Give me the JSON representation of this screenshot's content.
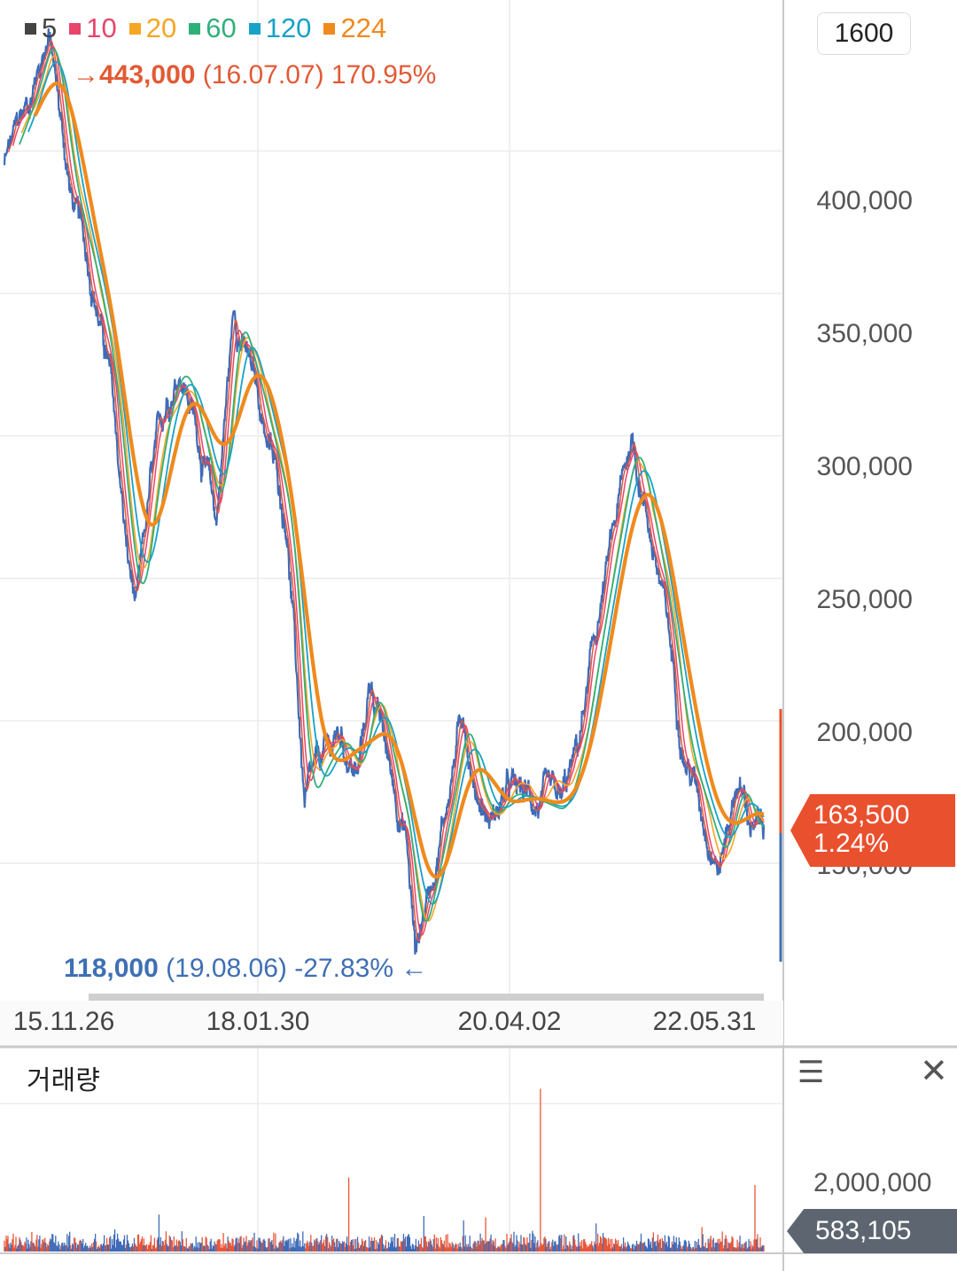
{
  "legend": [
    {
      "label": "5",
      "color": "#444444"
    },
    {
      "label": "10",
      "color": "#e8456b"
    },
    {
      "label": "20",
      "color": "#f5a623"
    },
    {
      "label": "60",
      "color": "#2fb07a"
    },
    {
      "label": "120",
      "color": "#17a2c8"
    },
    {
      "label": "224",
      "color": "#f08a1c"
    }
  ],
  "period": "1600",
  "high": {
    "arrow": "→",
    "price": "443,000",
    "date": "(16.07.07)",
    "pct": "170.95%"
  },
  "low": {
    "price": "118,000",
    "date": "(19.08.06)",
    "pct": "-27.83%",
    "arrow": "←"
  },
  "current": {
    "price": "163,500",
    "change": "1.24%"
  },
  "volume": {
    "title": "거래량",
    "axis_label": "2,000,000",
    "current": "583,105"
  },
  "icons": {
    "menu": "menu-icon",
    "close": "close-icon"
  },
  "chart_data": {
    "type": "line",
    "x_tick_labels": [
      "15.11.26",
      "18.01.30",
      "20.04.02",
      "22.05.31"
    ],
    "y_tick_labels": [
      "400,000",
      "350,000",
      "300,000",
      "250,000",
      "200,000",
      "150,000"
    ],
    "ylim": [
      103000,
      453000
    ],
    "price_keypoints": [
      {
        "i": 0,
        "v": 395000
      },
      {
        "i": 60,
        "v": 420000
      },
      {
        "i": 100,
        "v": 443000
      },
      {
        "i": 150,
        "v": 385000
      },
      {
        "i": 200,
        "v": 355000
      },
      {
        "i": 240,
        "v": 320000
      },
      {
        "i": 280,
        "v": 255000
      },
      {
        "i": 300,
        "v": 238000
      },
      {
        "i": 330,
        "v": 280000
      },
      {
        "i": 370,
        "v": 315000
      },
      {
        "i": 400,
        "v": 325000
      },
      {
        "i": 440,
        "v": 300000
      },
      {
        "i": 480,
        "v": 270000
      },
      {
        "i": 520,
        "v": 345000
      },
      {
        "i": 580,
        "v": 310000
      },
      {
        "i": 640,
        "v": 270000
      },
      {
        "i": 680,
        "v": 170000
      },
      {
        "i": 720,
        "v": 185000
      },
      {
        "i": 760,
        "v": 195000
      },
      {
        "i": 800,
        "v": 180000
      },
      {
        "i": 830,
        "v": 215000
      },
      {
        "i": 870,
        "v": 185000
      },
      {
        "i": 910,
        "v": 160000
      },
      {
        "i": 930,
        "v": 120000
      },
      {
        "i": 960,
        "v": 140000
      },
      {
        "i": 1000,
        "v": 170000
      },
      {
        "i": 1040,
        "v": 205000
      },
      {
        "i": 1060,
        "v": 180000
      },
      {
        "i": 1100,
        "v": 165000
      },
      {
        "i": 1140,
        "v": 175000
      },
      {
        "i": 1200,
        "v": 172000
      },
      {
        "i": 1260,
        "v": 168000
      },
      {
        "i": 1300,
        "v": 190000
      },
      {
        "i": 1340,
        "v": 230000
      },
      {
        "i": 1380,
        "v": 265000
      },
      {
        "i": 1420,
        "v": 300000
      },
      {
        "i": 1460,
        "v": 270000
      },
      {
        "i": 1500,
        "v": 235000
      },
      {
        "i": 1540,
        "v": 190000
      },
      {
        "i": 1580,
        "v": 170000
      },
      {
        "i": 1620,
        "v": 150000
      },
      {
        "i": 1660,
        "v": 180000
      },
      {
        "i": 1700,
        "v": 160000
      },
      {
        "i": 1720,
        "v": 163500
      }
    ],
    "ma_periods": [
      5,
      10,
      20,
      60,
      120,
      224
    ],
    "volume_axis_max": 2000000,
    "volume_spikes": [
      {
        "i": 250,
        "v": 300000
      },
      {
        "i": 350,
        "v": 500000
      },
      {
        "i": 780,
        "v": 1000000
      },
      {
        "i": 950,
        "v": 480000
      },
      {
        "i": 1040,
        "v": 420000
      },
      {
        "i": 1090,
        "v": 460000
      },
      {
        "i": 1215,
        "v": 2200000
      },
      {
        "i": 1340,
        "v": 380000
      },
      {
        "i": 1580,
        "v": 330000
      },
      {
        "i": 1700,
        "v": 900000
      }
    ]
  }
}
